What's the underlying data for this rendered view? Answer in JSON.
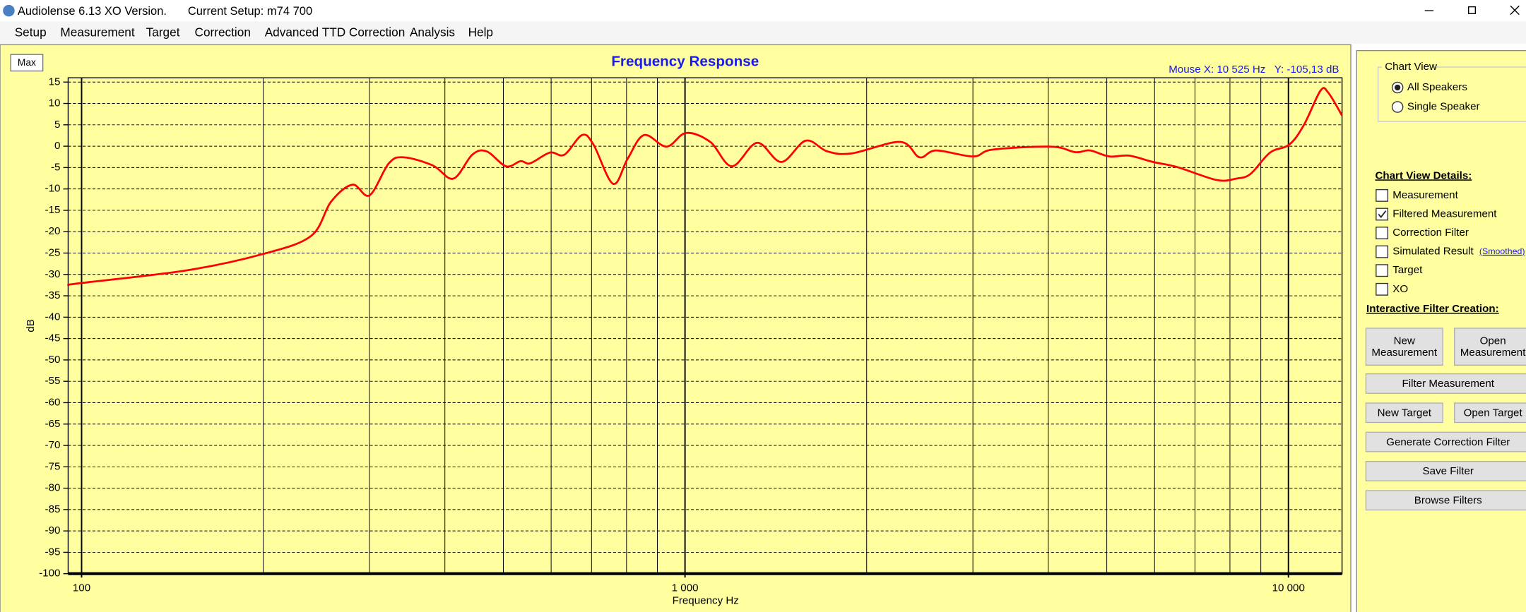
{
  "window": {
    "title": "Audiolense 6.13 XO Version.",
    "setup": "Current Setup: m74 700"
  },
  "menu": [
    "Setup",
    "Measurement",
    "Target",
    "Correction",
    "Advanced TTD Correction",
    "Analysis",
    "Help"
  ],
  "chart_data": {
    "type": "line",
    "title": "Frequency Response",
    "mouse_readout": "Mouse X: 10 525 Hz   Y: -105,13 dB",
    "max_button": "Max",
    "xlabel": "Frequency Hz",
    "ylabel": "dB",
    "xscale": "log",
    "grid": true,
    "color": "#ff0000",
    "xlim": [
      95,
      12270
    ],
    "ylim": [
      -100,
      16
    ],
    "xticks": [
      {
        "value": 100,
        "label": "100"
      },
      {
        "value": 1000,
        "label": "1 000"
      },
      {
        "value": 10000,
        "label": "10 000"
      }
    ],
    "xminor_ticks": [
      200,
      300,
      400,
      500,
      600,
      700,
      800,
      900,
      2000,
      3000,
      4000,
      5000,
      6000,
      7000,
      8000,
      9000
    ],
    "yticks": [
      15,
      10,
      5,
      0,
      -5,
      -10,
      -15,
      -20,
      -25,
      -30,
      -35,
      -40,
      -45,
      -50,
      -55,
      -60,
      -65,
      -70,
      -75,
      -80,
      -85,
      -90,
      -95,
      -100
    ],
    "x": [
      95,
      100,
      150,
      200,
      240,
      259,
      281,
      300,
      323,
      342,
      382,
      413,
      444,
      469,
      505,
      534,
      554,
      597,
      631,
      675,
      705,
      760,
      803,
      855,
      932,
      1004,
      1101,
      1196,
      1317,
      1444,
      1585,
      1720,
      1888,
      2273,
      2447,
      2607,
      3002,
      3234,
      4042,
      4436,
      4688,
      5050,
      5440,
      5967,
      6549,
      7598,
      8184,
      8652,
      9321,
      10037,
      10612,
      11302,
      11644,
      12266
    ],
    "values": [
      -32.5,
      -32,
      -29,
      -25.2,
      -21,
      -13,
      -9,
      -11.5,
      -4,
      -2.6,
      -4.5,
      -7.6,
      -2,
      -1.2,
      -4.7,
      -3.5,
      -4,
      -1.5,
      -2,
      2.6,
      0.4,
      -8.8,
      -3,
      2.6,
      -0.1,
      3.1,
      1,
      -4.7,
      0.8,
      -3.7,
      1.3,
      -1.2,
      -1.7,
      1,
      -2.6,
      -1,
      -2.4,
      -0.8,
      -0.1,
      -1.4,
      -1,
      -2.4,
      -2.2,
      -3.7,
      -4.9,
      -7.9,
      -7.6,
      -6.5,
      -1.5,
      0.4,
      5,
      13,
      12.5,
      7.2
    ]
  },
  "panel": {
    "chart_view": {
      "title": "Chart View",
      "options": [
        {
          "label": "All Speakers",
          "selected": true
        },
        {
          "label": "Single Speaker",
          "selected": false
        }
      ]
    },
    "details": {
      "title": "Chart View Details:",
      "items": [
        {
          "label": "Measurement",
          "checked": false
        },
        {
          "label": "Filtered Measurement",
          "checked": true
        },
        {
          "label": "Correction Filter",
          "checked": false
        },
        {
          "label": "Simulated Result",
          "checked": false
        },
        {
          "label": "Target",
          "checked": false
        },
        {
          "label": "XO",
          "checked": false
        }
      ],
      "smoothed_link": "(Smoothed)"
    },
    "filter_creation": {
      "title": "Interactive Filter Creation:",
      "buttons": [
        "New Measurement",
        "Open Measurement",
        "Filter Measurement",
        "New Target",
        "Open Target",
        "Generate Correction Filter",
        "Save Filter",
        "Browse Filters"
      ]
    }
  }
}
